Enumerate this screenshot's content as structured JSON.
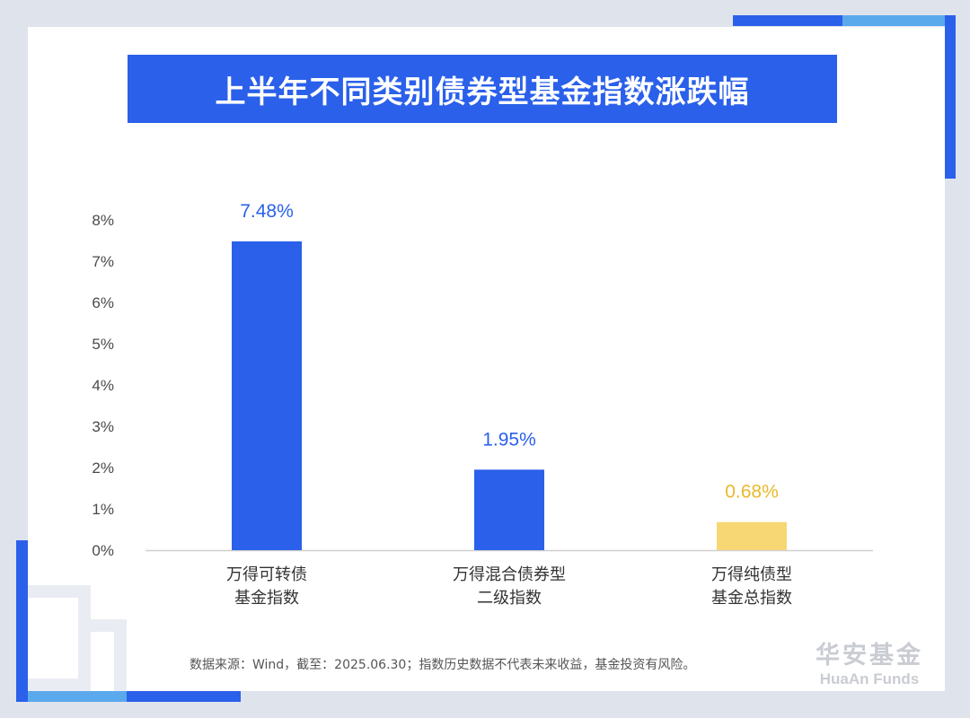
{
  "header": {
    "title": "上半年不同类别债券型基金指数涨跌幅"
  },
  "colors": {
    "primary": "#2a60ea",
    "highlight": "#f7d774",
    "frame_accent": "#2a60ea",
    "frame_light": "#5aa9ec"
  },
  "chart_data": {
    "type": "bar",
    "title": "上半年不同类别债券型基金指数涨跌幅",
    "xlabel": "",
    "ylabel": "",
    "ylim": [
      0,
      8
    ],
    "y_ticks": [
      "0%",
      "1%",
      "2%",
      "3%",
      "4%",
      "5%",
      "6%",
      "7%",
      "8%"
    ],
    "grid": false,
    "categories": [
      [
        "万得可转债",
        "基金指数"
      ],
      [
        "万得混合债券型",
        "二级指数"
      ],
      [
        "万得纯债型",
        "基金总指数"
      ]
    ],
    "values": [
      7.48,
      1.95,
      0.68
    ],
    "data_labels": [
      "7.48%",
      "1.95%",
      "0.68%"
    ],
    "bar_colors": [
      "#2a60ea",
      "#2a60ea",
      "#f7d774"
    ],
    "label_colors": [
      "#2a60ea",
      "#2a60ea",
      "#e9b92b"
    ]
  },
  "footer": {
    "note": "数据来源：Wind，截至：2025.06.30；指数历史数据不代表未来收益，基金投资有风险。",
    "logo_cn": "华安基金",
    "logo_en": "HuaAn Funds"
  }
}
